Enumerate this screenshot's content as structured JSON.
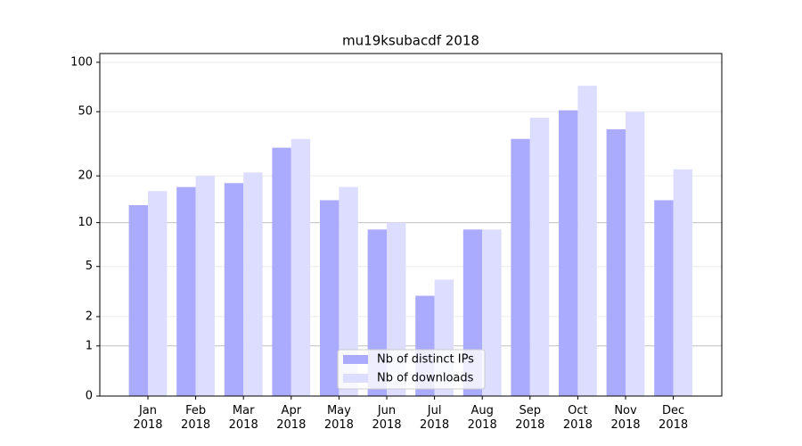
{
  "chart_data": {
    "type": "bar",
    "title": "mu19ksubacdf 2018",
    "categories": [
      "Jan\n2018",
      "Feb\n2018",
      "Mar\n2018",
      "Apr\n2018",
      "May\n2018",
      "Jun\n2018",
      "Jul\n2018",
      "Aug\n2018",
      "Sep\n2018",
      "Oct\n2018",
      "Nov\n2018",
      "Dec\n2018"
    ],
    "series": [
      {
        "name": "Nb of distinct IPs",
        "color": "#aaaaff",
        "values": [
          13,
          17,
          18,
          30,
          14,
          9,
          3,
          9,
          34,
          51,
          39,
          14
        ]
      },
      {
        "name": "Nb of downloads",
        "color": "#ddddff",
        "values": [
          16,
          20,
          21,
          34,
          17,
          10,
          4,
          9,
          46,
          72,
          50,
          22
        ]
      }
    ],
    "yscale": "log1p",
    "ylim": [
      0,
      113
    ],
    "yticks": [
      0,
      1,
      2,
      5,
      10,
      20,
      50,
      100
    ],
    "grid": true,
    "legend": "lower center"
  }
}
